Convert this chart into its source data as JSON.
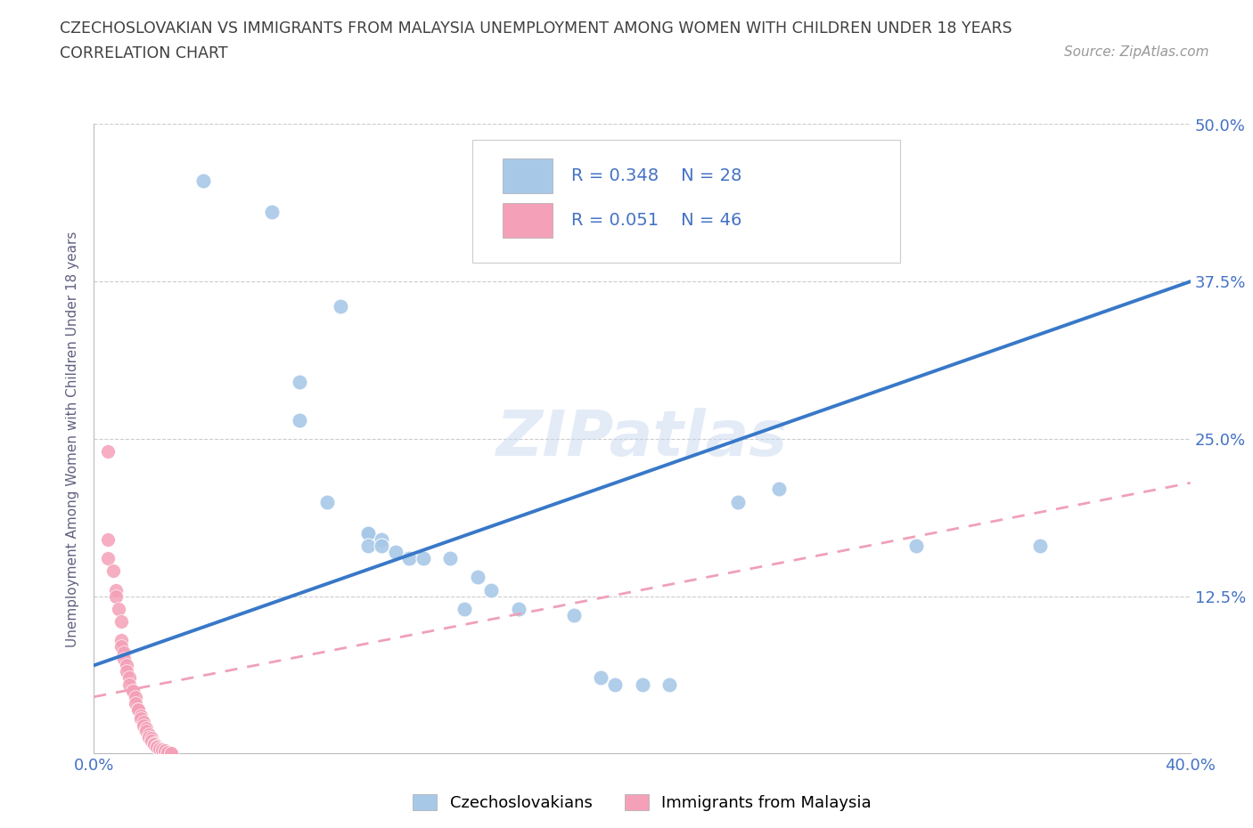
{
  "title_line1": "CZECHOSLOVAKIAN VS IMMIGRANTS FROM MALAYSIA UNEMPLOYMENT AMONG WOMEN WITH CHILDREN UNDER 18 YEARS",
  "title_line2": "CORRELATION CHART",
  "source": "Source: ZipAtlas.com",
  "ylabel": "Unemployment Among Women with Children Under 18 years",
  "watermark": "ZIPatlas",
  "blue_label": "Czechoslovakians",
  "pink_label": "Immigrants from Malaysia",
  "blue_R": "R = 0.348",
  "blue_N": "N = 28",
  "pink_R": "R = 0.051",
  "pink_N": "N = 46",
  "xlim": [
    0.0,
    0.4
  ],
  "ylim": [
    0.0,
    0.5
  ],
  "xticks": [
    0.0,
    0.1,
    0.2,
    0.3,
    0.4
  ],
  "xtick_labels": [
    "0.0%",
    "",
    "",
    "",
    "40.0%"
  ],
  "yticks": [
    0.0,
    0.125,
    0.25,
    0.375,
    0.5
  ],
  "ytick_labels_right": [
    "",
    "12.5%",
    "25.0%",
    "37.5%",
    "50.0%"
  ],
  "blue_color": "#a8c8e8",
  "pink_color": "#f4a0b8",
  "blue_line_color": "#3878c8",
  "pink_line_color": "#f0a0b8",
  "blue_scatter": [
    [
      0.04,
      0.455
    ],
    [
      0.065,
      0.43
    ],
    [
      0.09,
      0.355
    ],
    [
      0.075,
      0.295
    ],
    [
      0.075,
      0.265
    ],
    [
      0.085,
      0.2
    ],
    [
      0.1,
      0.175
    ],
    [
      0.1,
      0.175
    ],
    [
      0.105,
      0.17
    ],
    [
      0.1,
      0.165
    ],
    [
      0.105,
      0.165
    ],
    [
      0.11,
      0.16
    ],
    [
      0.115,
      0.155
    ],
    [
      0.12,
      0.155
    ],
    [
      0.13,
      0.155
    ],
    [
      0.14,
      0.14
    ],
    [
      0.145,
      0.13
    ],
    [
      0.135,
      0.115
    ],
    [
      0.155,
      0.115
    ],
    [
      0.175,
      0.11
    ],
    [
      0.185,
      0.06
    ],
    [
      0.19,
      0.055
    ],
    [
      0.2,
      0.055
    ],
    [
      0.21,
      0.055
    ],
    [
      0.235,
      0.2
    ],
    [
      0.25,
      0.21
    ],
    [
      0.3,
      0.165
    ],
    [
      0.345,
      0.165
    ]
  ],
  "pink_scatter": [
    [
      0.005,
      0.24
    ],
    [
      0.005,
      0.17
    ],
    [
      0.005,
      0.155
    ],
    [
      0.007,
      0.145
    ],
    [
      0.008,
      0.13
    ],
    [
      0.008,
      0.125
    ],
    [
      0.009,
      0.115
    ],
    [
      0.01,
      0.105
    ],
    [
      0.01,
      0.09
    ],
    [
      0.01,
      0.085
    ],
    [
      0.011,
      0.08
    ],
    [
      0.011,
      0.075
    ],
    [
      0.012,
      0.07
    ],
    [
      0.012,
      0.065
    ],
    [
      0.013,
      0.06
    ],
    [
      0.013,
      0.055
    ],
    [
      0.014,
      0.05
    ],
    [
      0.014,
      0.05
    ],
    [
      0.015,
      0.045
    ],
    [
      0.015,
      0.04
    ],
    [
      0.016,
      0.035
    ],
    [
      0.016,
      0.035
    ],
    [
      0.017,
      0.03
    ],
    [
      0.017,
      0.028
    ],
    [
      0.018,
      0.025
    ],
    [
      0.018,
      0.022
    ],
    [
      0.019,
      0.02
    ],
    [
      0.019,
      0.018
    ],
    [
      0.02,
      0.015
    ],
    [
      0.02,
      0.013
    ],
    [
      0.021,
      0.012
    ],
    [
      0.021,
      0.01
    ],
    [
      0.022,
      0.008
    ],
    [
      0.022,
      0.007
    ],
    [
      0.023,
      0.006
    ],
    [
      0.023,
      0.005
    ],
    [
      0.024,
      0.004
    ],
    [
      0.024,
      0.004
    ],
    [
      0.025,
      0.003
    ],
    [
      0.025,
      0.003
    ],
    [
      0.026,
      0.002
    ],
    [
      0.026,
      0.002
    ],
    [
      0.027,
      0.001
    ],
    [
      0.027,
      0.001
    ],
    [
      0.028,
      0.0
    ],
    [
      0.028,
      0.0
    ]
  ],
  "blue_trend_x": [
    0.0,
    0.4
  ],
  "blue_trend_y": [
    0.07,
    0.375
  ],
  "pink_trend_x": [
    0.0,
    0.4
  ],
  "pink_trend_y": [
    0.045,
    0.215
  ],
  "background_color": "#ffffff",
  "grid_color": "#cccccc",
  "title_color": "#404040",
  "axis_label_color": "#606080",
  "tick_label_color": "#4472c4"
}
